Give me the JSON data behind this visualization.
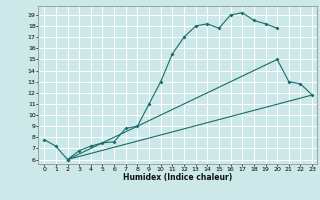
{
  "bg_color": "#cce8e8",
  "grid_color": "#ffffff",
  "line_color": "#1a6b6b",
  "xlim_min": -0.5,
  "xlim_max": 23.4,
  "ylim_min": 5.6,
  "ylim_max": 19.8,
  "xticks": [
    0,
    1,
    2,
    3,
    4,
    5,
    6,
    7,
    8,
    9,
    10,
    11,
    12,
    13,
    14,
    15,
    16,
    17,
    18,
    19,
    20,
    21,
    22,
    23
  ],
  "yticks": [
    6,
    7,
    8,
    9,
    10,
    11,
    12,
    13,
    14,
    15,
    16,
    17,
    18,
    19
  ],
  "xlabel": "Humidex (Indice chaleur)",
  "figsize": [
    3.2,
    2.0
  ],
  "dpi": 100,
  "curve1_x": [
    0,
    1,
    2,
    3,
    4,
    5,
    6,
    7,
    8,
    9,
    10,
    11,
    12,
    13,
    14,
    15,
    16,
    17,
    18,
    19,
    20
  ],
  "curve1_y": [
    7.8,
    7.2,
    6.0,
    6.8,
    7.2,
    7.5,
    7.6,
    8.8,
    9.0,
    11.0,
    13.0,
    15.5,
    17.0,
    18.0,
    18.2,
    17.8,
    19.0,
    19.2,
    18.5,
    18.2,
    17.8
  ],
  "curve2_x": [
    2,
    20,
    21,
    22,
    23
  ],
  "curve2_y": [
    6.0,
    15.0,
    13.0,
    12.8,
    11.8
  ],
  "curve3_x": [
    2,
    23
  ],
  "curve3_y": [
    6.0,
    11.8
  ]
}
